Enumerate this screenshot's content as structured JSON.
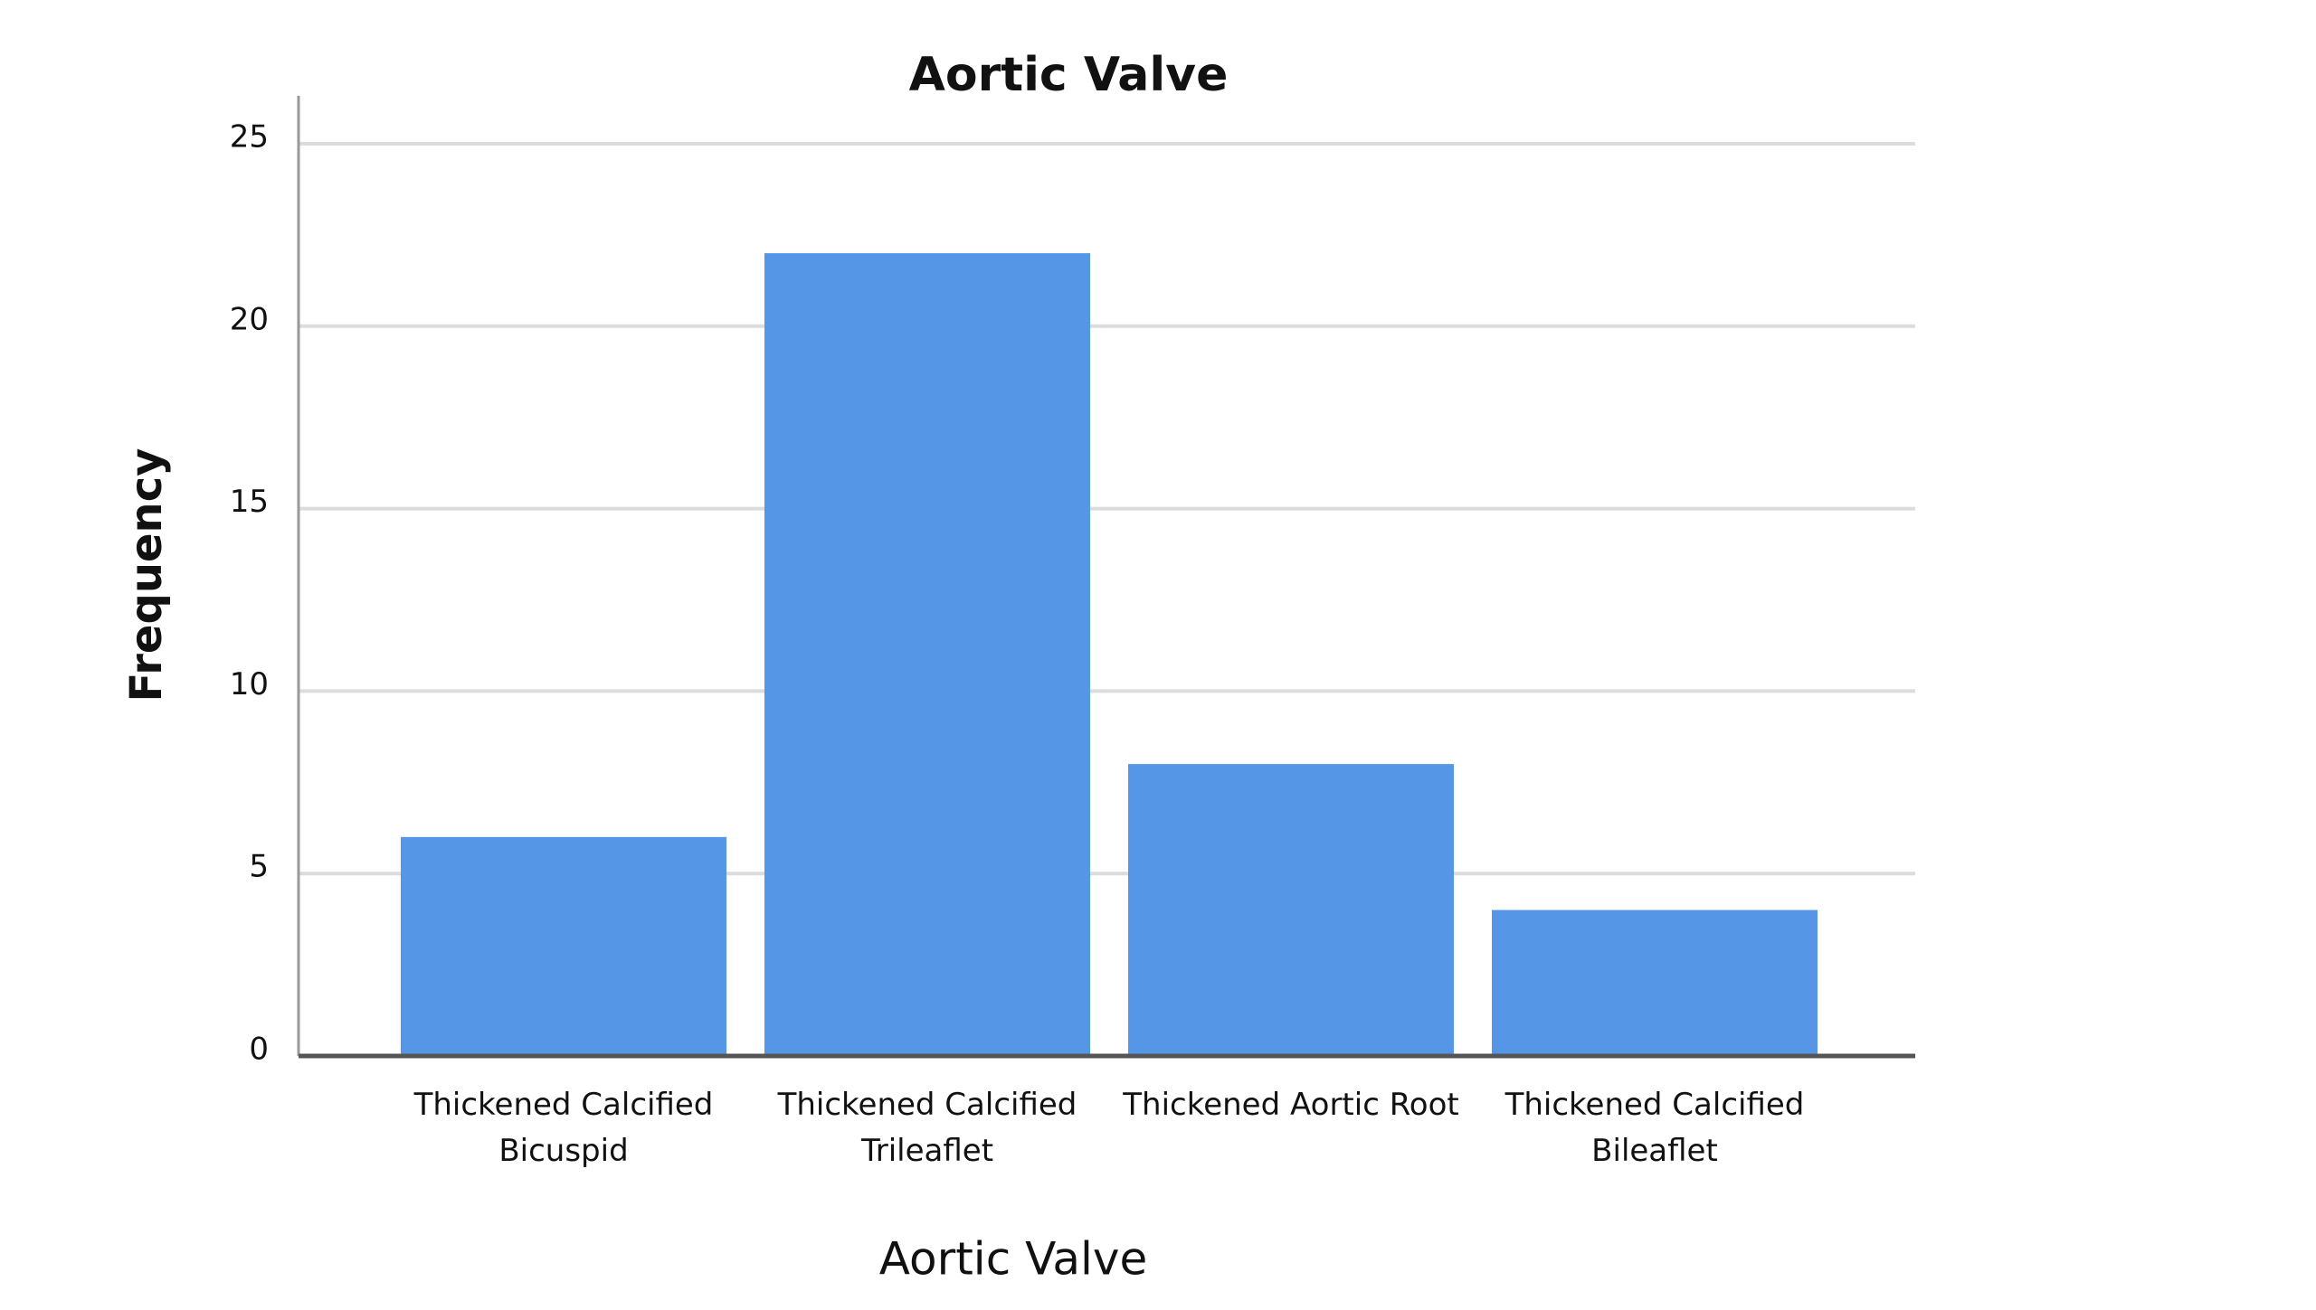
{
  "chart_data": {
    "type": "bar",
    "title": "Aortic Valve",
    "x_label": "Aortic Valve",
    "y_label": "Frequency",
    "categories": [
      "Thickened Calcified Bicuspid",
      "Thickened Calcified Trileaflet",
      "Thickened Aortic Root",
      "Thickened Calcified Bileaflet"
    ],
    "values": [
      6,
      22,
      8,
      4
    ],
    "color": "#5596e6",
    "ylim": [
      0,
      25
    ],
    "yticks": [
      0,
      5,
      10,
      15,
      20,
      25
    ],
    "grid": true
  }
}
